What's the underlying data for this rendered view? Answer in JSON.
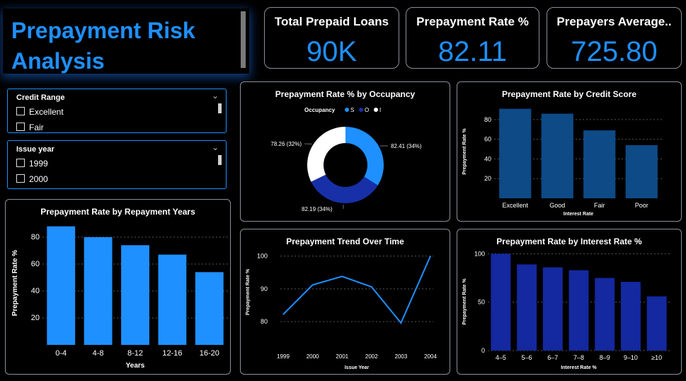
{
  "header": {
    "title_line1": "Prepayment Risk",
    "title_line2": "Analysis"
  },
  "kpis": [
    {
      "label": "Total Prepaid Loans",
      "value": "90K"
    },
    {
      "label": "Prepayment Rate %",
      "value": "82.11"
    },
    {
      "label": "Prepayers Average..",
      "value": "725.80"
    }
  ],
  "slicers": {
    "credit_range": {
      "title": "Credit Range",
      "items": [
        "Excellent",
        "Fair"
      ]
    },
    "issue_year": {
      "title": "Issue year",
      "items": [
        "1999",
        "2000"
      ]
    }
  },
  "colors": {
    "accent": "#1e90ff",
    "bar_light": "#1e90ff",
    "bar_mid": "#0d4a86",
    "bar_navy": "#1428a0",
    "donut_dark": "#1730a8",
    "donut_white": "#ffffff"
  },
  "chart_data": [
    {
      "id": "repayment_years",
      "type": "bar",
      "title": "Prepayment Rate by Repayment Years",
      "xlabel": "Years",
      "ylabel": "Prepayment Rate %",
      "categories": [
        "0-4",
        "4-8",
        "8-12",
        "12-16",
        "16-20"
      ],
      "values": [
        88,
        80,
        74,
        67,
        54
      ],
      "yticks": [
        20,
        40,
        60,
        80
      ],
      "ylim": [
        0,
        92
      ],
      "grid": true
    },
    {
      "id": "occupancy",
      "type": "pie",
      "title": "Prepayment Rate % by Occupancy",
      "legend_title": "Occupancy",
      "legend": [
        "S",
        "O",
        "I"
      ],
      "values": [
        82.41,
        82.19,
        78.26
      ],
      "labels": [
        "82.41 (34%)",
        "82.19 (34%)",
        "78.26 (32%)"
      ],
      "legend_position": "top"
    },
    {
      "id": "credit_score",
      "type": "bar",
      "title": "Prepayment Rate by Credit Score",
      "xlabel": "Interest Rate",
      "ylabel": "Prepayment Rate %",
      "categories": [
        "Excellent",
        "Good",
        "Fair",
        "Poor"
      ],
      "values": [
        91,
        86,
        69,
        54
      ],
      "yticks": [
        20,
        40,
        60,
        80
      ],
      "ylim": [
        0,
        95
      ],
      "grid": true
    },
    {
      "id": "trend",
      "type": "line",
      "title": "Prepayment Trend Over Time",
      "xlabel": "Issue Year",
      "ylabel": "Prepayment Rate %",
      "x": [
        "1999",
        "2000",
        "2001",
        "2002",
        "2003",
        "2004"
      ],
      "values": [
        82.2,
        91.2,
        93.8,
        90.6,
        79.6,
        100
      ],
      "yticks": [
        80,
        90,
        100
      ],
      "ylim": [
        77,
        101
      ],
      "grid": true
    },
    {
      "id": "interest_rate",
      "type": "bar",
      "title": "Prepayment Rate by Interest Rate %",
      "xlabel": "Interest Rate %",
      "ylabel": "Prepayment Rate %",
      "categories": [
        "4–5",
        "5–6",
        "6–7",
        "7–8",
        "8–9",
        "9–10",
        "≥10"
      ],
      "values": [
        100,
        89,
        86,
        83,
        75,
        71,
        56
      ],
      "yticks": [
        0,
        50,
        100
      ],
      "ylim": [
        0,
        101
      ],
      "grid": true
    }
  ]
}
